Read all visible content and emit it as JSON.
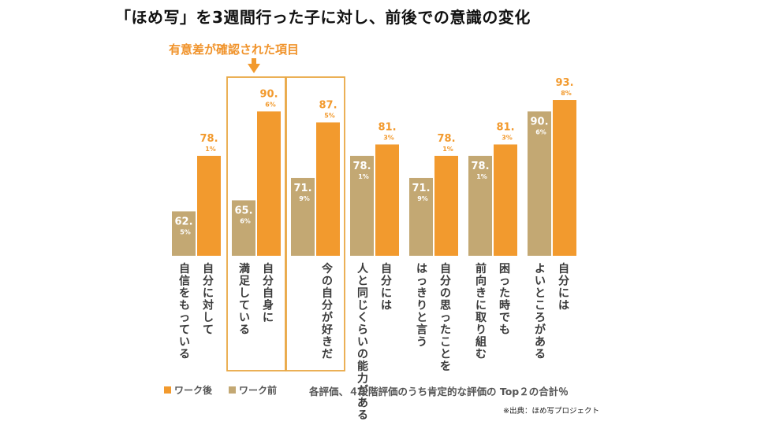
{
  "title": "「ほめ写」を3週間行った子に対し、前後での意識の変化",
  "annotation": "有意差が確認された項目",
  "colors": {
    "after": "#f29a2e",
    "before": "#c3a873",
    "box": "#e9a744",
    "label": "#3a3a3a"
  },
  "legend": {
    "after": "ワーク後",
    "before": "ワーク前"
  },
  "note": "各評価、４段階評価のうち肯定的な評価の Top２の合計％",
  "source": "※出典：ほめ写プロジェクト",
  "chart_data": {
    "type": "bar",
    "ylabel": "",
    "categories": [
      {
        "col1": "自分に対して",
        "col2": "自信をもっている"
      },
      {
        "col1": "自分自身に",
        "col2": "満足している"
      },
      {
        "col1": "今の自分が好きだ",
        "col2": ""
      },
      {
        "col1": "自分には",
        "col2": "人と同じくらいの能力がある"
      },
      {
        "col1": "自分の思ったことを",
        "col2": "はっきりと言う"
      },
      {
        "col1": "困った時でも",
        "col2": "前向きに取り組む"
      },
      {
        "col1": "自分には",
        "col2": "よいところがある"
      }
    ],
    "series": [
      {
        "name": "ワーク前",
        "values": [
          62.5,
          65.6,
          71.9,
          78.1,
          71.9,
          78.1,
          90.6
        ],
        "labels": [
          [
            "62.",
            "5%"
          ],
          [
            "65.",
            "6%"
          ],
          [
            "71.",
            "9%"
          ],
          [
            "78.",
            "1%"
          ],
          [
            "71.",
            "9%"
          ],
          [
            "78.",
            "1%"
          ],
          [
            "90.",
            "6%"
          ]
        ]
      },
      {
        "name": "ワーク後",
        "values": [
          78.1,
          90.6,
          87.5,
          81.3,
          78.1,
          81.3,
          93.8
        ],
        "labels": [
          [
            "78.",
            "1%"
          ],
          [
            "90.",
            "6%"
          ],
          [
            "87.",
            "5%"
          ],
          [
            "81.",
            "3%"
          ],
          [
            "78.",
            "1%"
          ],
          [
            "81.",
            "3%"
          ],
          [
            "93.",
            "8%"
          ]
        ]
      }
    ],
    "highlighted": [
      1,
      2
    ]
  }
}
